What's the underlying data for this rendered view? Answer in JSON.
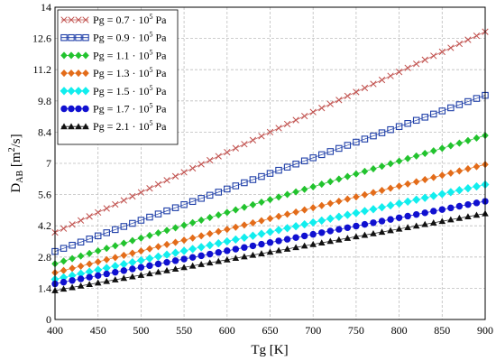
{
  "chart_data": {
    "type": "line",
    "xlabel": "Tg [K]",
    "ylabel": "D",
    "ylabel_sub": "AB",
    "ylabel_unit": " [m",
    "ylabel_sup": "2",
    "ylabel_end": "/s]",
    "xlim": [
      400,
      900
    ],
    "ylim": [
      0,
      14
    ],
    "x_ticks": [
      400,
      450,
      500,
      550,
      600,
      650,
      700,
      750,
      800,
      850,
      900
    ],
    "y_ticks": [
      0,
      1.4,
      2.8,
      4.2,
      5.6,
      7,
      8.4,
      9.8,
      11.2,
      12.6,
      14
    ],
    "grid": true,
    "legend_position": "top-left",
    "legend_units": "· 10",
    "legend_exp": "5",
    "legend_pa": " Pa",
    "x": [
      400,
      410,
      420,
      430,
      440,
      450,
      460,
      470,
      480,
      490,
      500,
      510,
      520,
      530,
      540,
      550,
      560,
      570,
      580,
      590,
      600,
      610,
      620,
      630,
      640,
      650,
      660,
      670,
      680,
      690,
      700,
      710,
      720,
      730,
      740,
      750,
      760,
      770,
      780,
      790,
      800,
      810,
      820,
      830,
      840,
      850,
      860,
      870,
      880,
      890,
      900
    ],
    "series": [
      {
        "name": "Pg = 0.7",
        "color": "#c0504d",
        "marker": "x",
        "y_start": 3.9,
        "y_end": 12.9
      },
      {
        "name": "Pg = 0.9",
        "color": "#1f3fa8",
        "marker": "square-open",
        "y_start": 3.05,
        "y_end": 10.05
      },
      {
        "name": "Pg = 1.1",
        "color": "#22c32e",
        "marker": "diamond",
        "y_start": 2.5,
        "y_end": 8.25
      },
      {
        "name": "Pg = 1.3",
        "color": "#e36c1a",
        "marker": "diamond",
        "y_start": 2.1,
        "y_end": 6.95
      },
      {
        "name": "Pg = 1.5",
        "color": "#11eeee",
        "marker": "diamond-bold",
        "y_start": 1.8,
        "y_end": 6.05
      },
      {
        "name": "Pg = 1.7",
        "color": "#1010d0",
        "marker": "circle",
        "y_start": 1.6,
        "y_end": 5.3
      },
      {
        "name": "Pg = 2.1",
        "color": "#111111",
        "marker": "triangle",
        "y_start": 1.3,
        "y_end": 4.75
      }
    ]
  }
}
